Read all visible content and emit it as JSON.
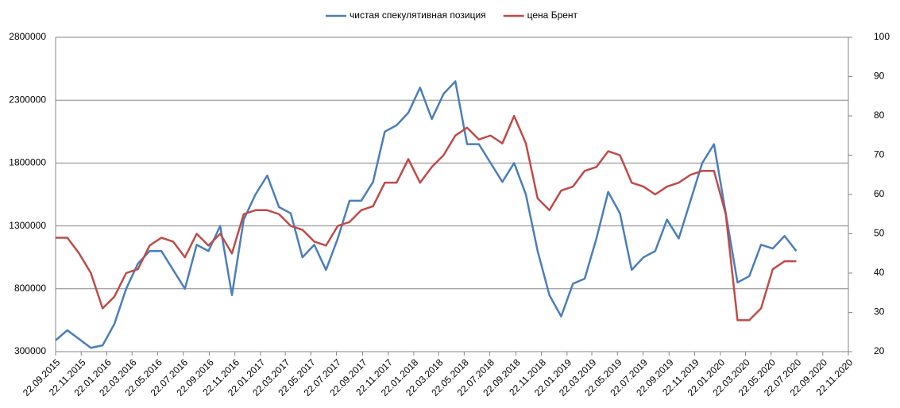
{
  "chart_data": {
    "type": "line",
    "x": [
      "2015-09-22",
      "2015-10-20",
      "2015-11-17",
      "2015-12-15",
      "2016-01-12",
      "2016-02-09",
      "2016-03-08",
      "2016-04-05",
      "2016-05-03",
      "2016-05-31",
      "2016-06-28",
      "2016-07-26",
      "2016-08-23",
      "2016-09-20",
      "2016-10-18",
      "2016-11-15",
      "2016-12-13",
      "2017-01-10",
      "2017-02-07",
      "2017-03-07",
      "2017-04-04",
      "2017-05-02",
      "2017-05-30",
      "2017-06-27",
      "2017-07-25",
      "2017-08-22",
      "2017-09-19",
      "2017-10-17",
      "2017-11-14",
      "2017-12-12",
      "2018-01-09",
      "2018-02-06",
      "2018-03-06",
      "2018-04-03",
      "2018-05-01",
      "2018-05-29",
      "2018-06-26",
      "2018-07-24",
      "2018-08-21",
      "2018-09-18",
      "2018-10-16",
      "2018-11-13",
      "2018-12-11",
      "2019-01-08",
      "2019-02-05",
      "2019-03-05",
      "2019-04-02",
      "2019-04-30",
      "2019-05-28",
      "2019-06-25",
      "2019-07-23",
      "2019-08-20",
      "2019-09-17",
      "2019-10-15",
      "2019-11-12",
      "2019-12-10",
      "2020-01-07",
      "2020-02-04",
      "2020-03-03",
      "2020-03-31",
      "2020-04-28",
      "2020-05-26",
      "2020-06-23",
      "2020-07-21"
    ],
    "series": [
      {
        "name": "чистая спекулятивная позиция",
        "color": "#4a7ebb",
        "axis": "y",
        "values": [
          390000,
          470000,
          400000,
          330000,
          350000,
          520000,
          800000,
          1000000,
          1100000,
          1100000,
          950000,
          800000,
          1150000,
          1100000,
          1300000,
          750000,
          1350000,
          1550000,
          1700000,
          1450000,
          1400000,
          1050000,
          1150000,
          950000,
          1200000,
          1500000,
          1500000,
          1650000,
          2050000,
          2100000,
          2200000,
          2400000,
          2150000,
          2350000,
          2450000,
          1950000,
          1950000,
          1800000,
          1650000,
          1800000,
          1550000,
          1100000,
          750000,
          580000,
          840000,
          880000,
          1200000,
          1570000,
          1400000,
          950000,
          1050000,
          1100000,
          1350000,
          1200000,
          1500000,
          1800000,
          1950000,
          1400000,
          850000,
          900000,
          1150000,
          1120000,
          1220000,
          1100000
        ]
      },
      {
        "name": "цена Брент",
        "color": "#be4b48",
        "axis": "y2",
        "values": [
          49,
          49,
          45,
          40,
          31,
          34,
          40,
          41,
          47,
          49,
          48,
          44,
          50,
          47,
          50,
          45,
          55,
          56,
          56,
          55,
          52,
          51,
          48,
          47,
          52,
          53,
          56,
          57,
          63,
          63,
          69,
          63,
          67,
          70,
          75,
          77,
          74,
          75,
          73,
          80,
          73,
          59,
          56,
          61,
          62,
          66,
          67,
          71,
          70,
          63,
          62,
          60,
          62,
          63,
          65,
          66,
          66,
          55,
          28,
          28,
          31,
          41,
          43,
          43
        ]
      }
    ],
    "xlim": [
      "2015-09-22",
      "2020-11-22"
    ],
    "xticks": [
      {
        "value": "2015-09-22",
        "label": "22.09.2015"
      },
      {
        "value": "2015-11-22",
        "label": "22.11.2015"
      },
      {
        "value": "2016-01-22",
        "label": "22.01.2016"
      },
      {
        "value": "2016-03-22",
        "label": "22.03.2016"
      },
      {
        "value": "2016-05-22",
        "label": "22.05.2016"
      },
      {
        "value": "2016-07-22",
        "label": "22.07.2016"
      },
      {
        "value": "2016-09-22",
        "label": "22.09.2016"
      },
      {
        "value": "2016-11-22",
        "label": "22.11.2016"
      },
      {
        "value": "2017-01-22",
        "label": "22.01.2017"
      },
      {
        "value": "2017-03-22",
        "label": "22.03.2017"
      },
      {
        "value": "2017-05-22",
        "label": "22.05.2017"
      },
      {
        "value": "2017-07-22",
        "label": "22.07.2017"
      },
      {
        "value": "2017-09-22",
        "label": "22.09.2017"
      },
      {
        "value": "2017-11-22",
        "label": "22.11.2017"
      },
      {
        "value": "2018-01-22",
        "label": "22.01.2018"
      },
      {
        "value": "2018-03-22",
        "label": "22.03.2018"
      },
      {
        "value": "2018-05-22",
        "label": "22.05.2018"
      },
      {
        "value": "2018-07-22",
        "label": "22.07.2018"
      },
      {
        "value": "2018-09-22",
        "label": "22.09.2018"
      },
      {
        "value": "2018-11-22",
        "label": "22.11.2018"
      },
      {
        "value": "2019-01-22",
        "label": "22.01.2019"
      },
      {
        "value": "2019-03-22",
        "label": "22.03.2019"
      },
      {
        "value": "2019-05-22",
        "label": "22.05.2019"
      },
      {
        "value": "2019-07-22",
        "label": "22.07.2019"
      },
      {
        "value": "2019-09-22",
        "label": "22.09.2019"
      },
      {
        "value": "2019-11-22",
        "label": "22.11.2019"
      },
      {
        "value": "2020-01-22",
        "label": "22.01.2020"
      },
      {
        "value": "2020-03-22",
        "label": "22.03.2020"
      },
      {
        "value": "2020-05-22",
        "label": "22.05.2020"
      },
      {
        "value": "2020-07-22",
        "label": "22.07.2020"
      },
      {
        "value": "2020-09-22",
        "label": "22.09.2020"
      },
      {
        "value": "2020-11-22",
        "label": "22.11.2020"
      }
    ],
    "ylim": [
      300000,
      2800000
    ],
    "yticks": [
      300000,
      800000,
      1300000,
      1800000,
      2300000,
      2800000
    ],
    "y2lim": [
      20,
      100
    ],
    "y2ticks": [
      20,
      30,
      40,
      50,
      60,
      70,
      80,
      90,
      100
    ],
    "grid": true,
    "legend": "top"
  }
}
